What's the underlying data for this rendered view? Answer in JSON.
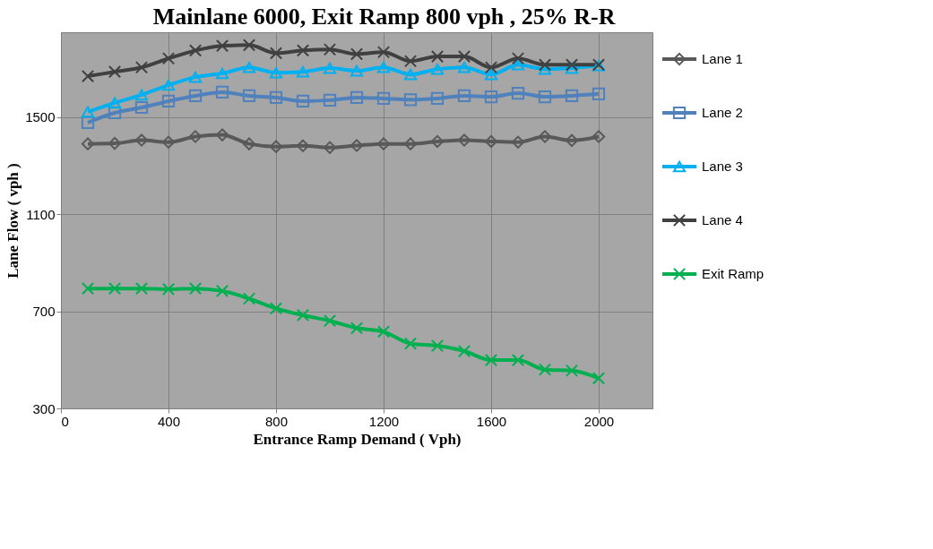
{
  "chart_data": {
    "type": "line",
    "title": "Mainlane 6000, Exit Ramp 800 vph , 25% R-R",
    "xlabel": "Entrance Ramp Demand ( Vph)",
    "ylabel": "Lane Flow ( vph )",
    "x": [
      100,
      200,
      300,
      400,
      500,
      600,
      700,
      800,
      900,
      1000,
      1100,
      1200,
      1300,
      1400,
      1500,
      1600,
      1700,
      1800,
      1900,
      2000
    ],
    "series": [
      {
        "name": "Lane 1",
        "color": "#595959",
        "marker": "diamond",
        "values": [
          1390,
          1392,
          1405,
          1397,
          1420,
          1427,
          1390,
          1379,
          1382,
          1375,
          1383,
          1390,
          1390,
          1400,
          1405,
          1400,
          1397,
          1420,
          1404,
          1420
        ]
      },
      {
        "name": "Lane 2",
        "color": "#4f81bd",
        "marker": "square",
        "values": [
          1478,
          1518,
          1540,
          1566,
          1588,
          1603,
          1588,
          1581,
          1566,
          1570,
          1581,
          1577,
          1572,
          1577,
          1588,
          1584,
          1599,
          1584,
          1588,
          1596
        ]
      },
      {
        "name": "Lane 3",
        "color": "#00b0f0",
        "marker": "triangle",
        "values": [
          1522,
          1559,
          1592,
          1632,
          1665,
          1680,
          1705,
          1683,
          1687,
          1702,
          1691,
          1705,
          1676,
          1698,
          1705,
          1676,
          1716,
          1698,
          1702,
          1713
        ]
      },
      {
        "name": "Lane 4",
        "color": "#404040",
        "marker": "cross",
        "values": [
          1669,
          1687,
          1705,
          1742,
          1775,
          1794,
          1797,
          1764,
          1775,
          1779,
          1760,
          1768,
          1731,
          1750,
          1750,
          1705,
          1742,
          1716,
          1716,
          1716
        ]
      },
      {
        "name": "Exit Ramp",
        "color": "#00b050",
        "marker": "cross",
        "values": [
          794,
          794,
          794,
          791,
          794,
          784,
          752,
          712,
          684,
          661,
          631,
          616,
          567,
          558,
          536,
          499,
          499,
          460,
          456,
          424
        ]
      }
    ],
    "xlim": [
      0,
      2200
    ],
    "xticks": [
      0,
      400,
      800,
      {
        "value": 1200,
        "label": "1200"
      },
      {
        "value": 1600,
        "label": "1600"
      },
      {
        "value": 2000,
        "label": "2000"
      }
    ],
    "ylim": [
      300,
      1850
    ],
    "yticks": [
      300,
      700,
      {
        "value": 1100,
        "label": "1100"
      },
      {
        "value": 1500,
        "label": "1500"
      }
    ],
    "grid": true,
    "legend": "right",
    "line_style": "solid"
  }
}
